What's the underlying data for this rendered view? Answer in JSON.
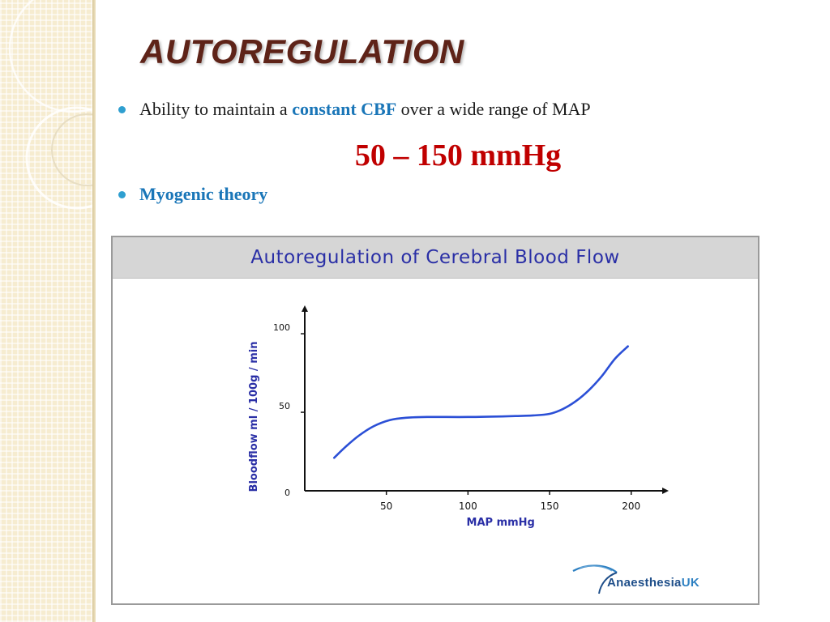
{
  "slide": {
    "title": "AUTOREGULATION",
    "bullet1": {
      "prefix": "Ability to maintain a ",
      "highlight": "constant CBF",
      "suffix": " over a wide range of MAP"
    },
    "range_text": "50 – 150 mmHg",
    "bullet2": "Myogenic theory"
  },
  "colors": {
    "title": "#5e2318",
    "range": "#c00000",
    "highlight_blue": "#1a76b8",
    "curve": "#2b4fd6",
    "chart_title": "#2a2fa6"
  },
  "chart_data": {
    "type": "line",
    "title": "Autoregulation of Cerebral Blood Flow",
    "xlabel": "MAP  mmHg",
    "ylabel": "Bloodflow ml / 100g / min",
    "xlim": [
      0,
      220
    ],
    "ylim": [
      0,
      115
    ],
    "x_ticks": [
      50,
      100,
      150,
      200
    ],
    "y_ticks": [
      0,
      50,
      100
    ],
    "grid": false,
    "series": [
      {
        "x": [
          18,
          25,
          33,
          42,
          52,
          62,
          75,
          100,
          125,
          140,
          150,
          158,
          166,
          174,
          182,
          190,
          198
        ],
        "y": [
          21,
          28,
          35,
          41,
          45,
          46.5,
          47,
          47,
          47.5,
          48,
          49,
          52,
          57,
          64,
          73,
          84,
          92
        ]
      }
    ]
  },
  "branding": {
    "logo_name": "Anaesthesia",
    "logo_suffix": "UK"
  }
}
